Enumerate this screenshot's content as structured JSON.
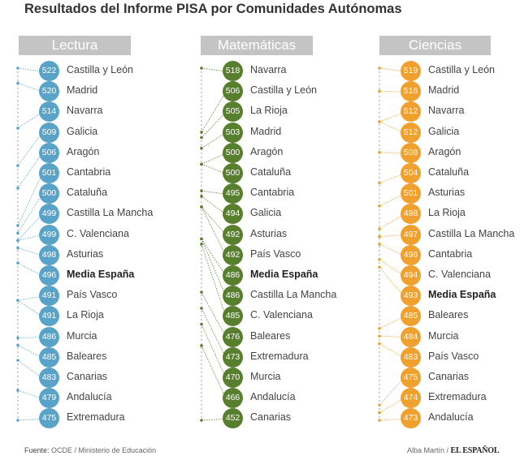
{
  "title": "Resultados del Informe PISA por Comunidades Autónomas",
  "chart_data": [
    {
      "type": "table",
      "title": "Lectura",
      "color": "#5aa3c8",
      "highlight": "Media España",
      "rows": [
        {
          "name": "Castilla y León",
          "value": 522
        },
        {
          "name": "Madrid",
          "value": 520
        },
        {
          "name": "Navarra",
          "value": 514
        },
        {
          "name": "Galicia",
          "value": 509
        },
        {
          "name": "Aragón",
          "value": 506
        },
        {
          "name": "Cantabria",
          "value": 501
        },
        {
          "name": "Cataluña",
          "value": 500
        },
        {
          "name": "Castilla La Mancha",
          "value": 499
        },
        {
          "name": "C. Valenciana",
          "value": 499
        },
        {
          "name": "Asturias",
          "value": 498
        },
        {
          "name": "Media España",
          "value": 496
        },
        {
          "name": "País Vasco",
          "value": 491
        },
        {
          "name": "La Rioja",
          "value": 491
        },
        {
          "name": "Murcia",
          "value": 486
        },
        {
          "name": "Baleares",
          "value": 485
        },
        {
          "name": "Canarias",
          "value": 483
        },
        {
          "name": "Andalucía",
          "value": 479
        },
        {
          "name": "Extremadura",
          "value": 475
        }
      ]
    },
    {
      "type": "table",
      "title": "Matemáticas",
      "color": "#587f2e",
      "highlight": "Media España",
      "rows": [
        {
          "name": "Navarra",
          "value": 518
        },
        {
          "name": "Castilla y León",
          "value": 506
        },
        {
          "name": "La Rioja",
          "value": 505
        },
        {
          "name": "Madrid",
          "value": 503
        },
        {
          "name": "Aragón",
          "value": 500
        },
        {
          "name": "Cataluña",
          "value": 500
        },
        {
          "name": "Cantabria",
          "value": 495
        },
        {
          "name": "Galicia",
          "value": 494
        },
        {
          "name": "Asturias",
          "value": 492
        },
        {
          "name": "País Vasco",
          "value": 492
        },
        {
          "name": "Media España",
          "value": 486
        },
        {
          "name": "Castilla La Mancha",
          "value": 486
        },
        {
          "name": "C. Valenciana",
          "value": 485
        },
        {
          "name": "Baleares",
          "value": 476
        },
        {
          "name": "Extremadura",
          "value": 473
        },
        {
          "name": "Murcia",
          "value": 470
        },
        {
          "name": "Andalucía",
          "value": 466
        },
        {
          "name": "Canarias",
          "value": 452
        }
      ]
    },
    {
      "type": "table",
      "title": "Ciencias",
      "color": "#f0a02d",
      "highlight": "Media España",
      "rows": [
        {
          "name": "Castilla y León",
          "value": 519
        },
        {
          "name": "Madrid",
          "value": 516
        },
        {
          "name": "Navarra",
          "value": 512
        },
        {
          "name": "Galicia",
          "value": 512
        },
        {
          "name": "Aragón",
          "value": 508
        },
        {
          "name": "Cataluña",
          "value": 504
        },
        {
          "name": "Asturias",
          "value": 501
        },
        {
          "name": "La Rioja",
          "value": 498
        },
        {
          "name": "Castilla La Mancha",
          "value": 497
        },
        {
          "name": "Cantabria",
          "value": 496
        },
        {
          "name": "C. Valenciana",
          "value": 494
        },
        {
          "name": "Media España",
          "value": 493
        },
        {
          "name": "Baleares",
          "value": 485
        },
        {
          "name": "Murcia",
          "value": 484
        },
        {
          "name": "País Vasco",
          "value": 483
        },
        {
          "name": "Canarias",
          "value": 475
        },
        {
          "name": "Extremadura",
          "value": 474
        },
        {
          "name": "Andalucía",
          "value": 473
        }
      ]
    }
  ],
  "footer": {
    "source_label": "Fuente:",
    "source_text": "OCDE / Ministerio de Educación",
    "credit": "Alba Martín /",
    "logo": "EL ESPAÑOL"
  }
}
